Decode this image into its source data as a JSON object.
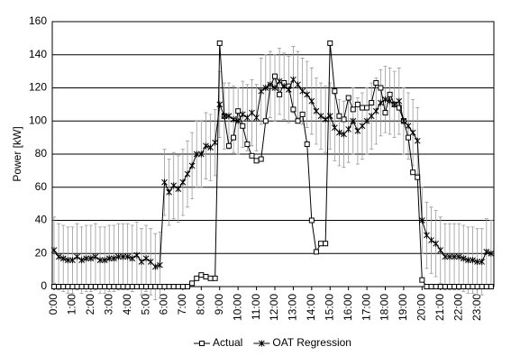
{
  "chart_data": {
    "type": "line",
    "y_label": "Power [kW]",
    "categories": [
      "0:00",
      null,
      null,
      null,
      "1:00",
      null,
      null,
      null,
      "2:00",
      null,
      null,
      null,
      "3:00",
      null,
      null,
      null,
      "4:00",
      null,
      null,
      null,
      "5:00",
      null,
      null,
      null,
      "6:00",
      null,
      null,
      null,
      "7:00",
      null,
      null,
      null,
      "8:00",
      null,
      null,
      null,
      "9:00",
      null,
      null,
      null,
      "10:00",
      null,
      null,
      null,
      "11:00",
      null,
      null,
      null,
      "12:00",
      null,
      null,
      null,
      "13:00",
      null,
      null,
      null,
      "14:00",
      null,
      null,
      null,
      "15:00",
      null,
      null,
      null,
      "16:00",
      null,
      null,
      null,
      "17:00",
      null,
      null,
      null,
      "18:00",
      null,
      null,
      null,
      "19:00",
      null,
      null,
      null,
      "20:00",
      null,
      null,
      null,
      "21:00",
      null,
      null,
      null,
      "22:00",
      null,
      null,
      null,
      "23:00",
      null,
      null,
      null
    ],
    "series": [
      {
        "name": "Actual",
        "color": "#000000",
        "marker": "square",
        "values": [
          0,
          0,
          0,
          0,
          0,
          0,
          0,
          0,
          0,
          0,
          0,
          0,
          0,
          0,
          0,
          0,
          0,
          0,
          0,
          0,
          0,
          0,
          0,
          0,
          0,
          0,
          0,
          0,
          0,
          0,
          2,
          5,
          7,
          6,
          5,
          5,
          147,
          103,
          85,
          90,
          106,
          97,
          86,
          79,
          76,
          77,
          100,
          121,
          127,
          116,
          123,
          121,
          107,
          100,
          104,
          86,
          40,
          21,
          26,
          26,
          147,
          118,
          103,
          101,
          114,
          107,
          110,
          108,
          108,
          111,
          123,
          120,
          105,
          116,
          110,
          108,
          100,
          90,
          69,
          66,
          4,
          0,
          0,
          0,
          0,
          0,
          0,
          0,
          0,
          0,
          0,
          0,
          0,
          0,
          0,
          0
        ]
      },
      {
        "name": "OAT Regression",
        "color": "#000000",
        "marker": "star",
        "values": [
          22,
          18,
          17,
          16,
          16,
          18,
          16,
          17,
          17,
          18,
          16,
          16,
          17,
          17,
          18,
          18,
          18,
          17,
          19,
          15,
          17,
          15,
          12,
          13,
          63,
          57,
          61,
          59,
          63,
          68,
          73,
          80,
          80,
          85,
          84,
          87,
          110,
          103,
          103,
          101,
          100,
          104,
          102,
          105,
          102,
          118,
          120,
          122,
          120,
          124,
          121,
          119,
          125,
          122,
          118,
          116,
          112,
          106,
          103,
          101,
          103,
          96,
          93,
          92,
          95,
          100,
          94,
          97,
          100,
          103,
          106,
          111,
          113,
          112,
          110,
          112,
          100,
          97,
          93,
          88,
          40,
          31,
          28,
          26,
          22,
          18,
          18,
          18,
          18,
          17,
          16,
          16,
          15,
          15,
          21,
          20
        ],
        "errors": [
          20,
          20,
          20,
          20,
          20,
          20,
          20,
          20,
          20,
          20,
          20,
          20,
          20,
          20,
          20,
          20,
          20,
          20,
          20,
          20,
          20,
          20,
          20,
          20,
          20,
          20,
          20,
          20,
          20,
          20,
          20,
          20,
          20,
          20,
          20,
          20,
          20,
          20,
          20,
          20,
          20,
          20,
          20,
          20,
          20,
          20,
          20,
          20,
          20,
          20,
          20,
          20,
          20,
          20,
          20,
          20,
          20,
          20,
          20,
          20,
          20,
          20,
          20,
          20,
          20,
          20,
          20,
          20,
          20,
          20,
          20,
          20,
          20,
          20,
          20,
          20,
          20,
          20,
          20,
          20,
          20,
          20,
          20,
          20,
          20,
          20,
          20,
          20,
          20,
          20,
          20,
          20,
          20,
          20,
          20,
          20
        ]
      }
    ],
    "ylim": [
      0,
      160
    ],
    "yticks": [
      0,
      20,
      40,
      60,
      80,
      100,
      120,
      140,
      160
    ],
    "grid": true,
    "legend": "bottom"
  }
}
